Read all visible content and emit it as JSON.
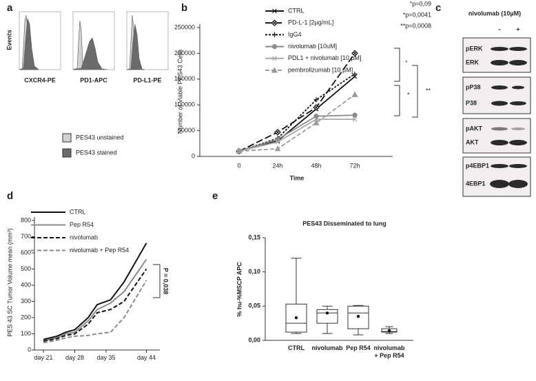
{
  "panel_labels": [
    "a",
    "b",
    "c",
    "d",
    "e"
  ],
  "flow": {
    "y_label": "Events",
    "plots": [
      "CXCR4-PE",
      "PD1-APC",
      "PD-L1-PE"
    ],
    "legend": [
      {
        "name": "PES43 unstained",
        "color": "#d0d0d0"
      },
      {
        "name": "PES43 stained",
        "color": "#6b6b6b"
      }
    ]
  },
  "blots": {
    "treatment": "nivolumab (10µM)",
    "lanes": [
      "-",
      "+"
    ],
    "groups": [
      [
        "pERK",
        "ERK"
      ],
      [
        "pP38",
        "P38"
      ],
      [
        "pAKT",
        "AKT"
      ],
      [
        "p4EBP1",
        "4EBP1"
      ]
    ]
  },
  "chart_data": [
    {
      "type": "line",
      "x_label": "Time",
      "y_label": "Number of Viable PES43 Cells",
      "categories": [
        "0",
        "24h",
        "48h",
        "72h"
      ],
      "ylim": [
        0,
        250000
      ],
      "yticks": [
        0,
        50000,
        100000,
        150000,
        200000,
        250000
      ],
      "series": [
        {
          "name": "CTRL",
          "color": "#111111",
          "dash": "solid",
          "marker": "x",
          "values": [
            10000,
            30000,
            92000,
            155000
          ]
        },
        {
          "name": "PD-L-1 [2µg/mL]",
          "color": "#111111",
          "dash": "long",
          "marker": "diamond",
          "values": [
            10000,
            47000,
            95000,
            200000
          ]
        },
        {
          "name": "IgG4",
          "color": "#111111",
          "dash": "short",
          "marker": "plus",
          "values": [
            10000,
            35000,
            110000,
            160000
          ]
        },
        {
          "name": "nivolumab [10uM]",
          "color": "#8a8a8a",
          "dash": "solid",
          "marker": "circle",
          "values": [
            10000,
            33000,
            78000,
            80000
          ]
        },
        {
          "name": "PDL1 + nivolumab [10 µM]",
          "color": "#a8a8a8",
          "dash": "solid",
          "marker": "x",
          "values": [
            10000,
            28000,
            72000,
            72000
          ]
        },
        {
          "name": "pembrolizumab [10 µM]",
          "color": "#9a9a9a",
          "dash": "dashed",
          "marker": "triangle",
          "values": [
            10000,
            15000,
            65000,
            120000
          ]
        }
      ],
      "annotations": [
        "°p=0,09",
        "*p=0,0041",
        "**p=0,0008"
      ],
      "bracket_labels": [
        "°",
        "*",
        "**"
      ]
    },
    {
      "type": "line",
      "y_label": "PES 43 SC Tumor Volume  mean (mm³)",
      "x": [
        21,
        24,
        26,
        28,
        31,
        33,
        36,
        39,
        44
      ],
      "xlim": [
        19,
        47
      ],
      "xticks": [
        {
          "value": 21,
          "label": "day 21"
        },
        {
          "value": 28,
          "label": "day 28"
        },
        {
          "value": 35,
          "label": "day 35"
        },
        {
          "value": 44,
          "label": "day 44"
        }
      ],
      "ylim": [
        0,
        800
      ],
      "yticks": [
        0,
        100,
        200,
        300,
        400,
        500,
        600,
        700,
        800
      ],
      "series": [
        {
          "name": "CTRL",
          "color": "#111111",
          "dash": "solid",
          "values": [
            65,
            85,
            110,
            125,
            200,
            280,
            310,
            420,
            660
          ]
        },
        {
          "name": "Pep R54",
          "color": "#8a8a8a",
          "dash": "solid",
          "values": [
            55,
            75,
            100,
            110,
            180,
            250,
            290,
            360,
            560
          ]
        },
        {
          "name": "nivolumab",
          "color": "#111111",
          "dash": "dashed",
          "values": [
            55,
            70,
            90,
            100,
            160,
            230,
            250,
            300,
            500
          ]
        },
        {
          "name": "nivolumab + Pep R54",
          "color": "#8a8a8a",
          "dash": "dashed",
          "values": [
            45,
            60,
            75,
            85,
            90,
            100,
            110,
            200,
            430
          ]
        }
      ],
      "annotations": [
        "P = 0,038"
      ]
    },
    {
      "type": "box",
      "title": "PES43 Disseminated to lung",
      "y_label": "% hu-%MSCP APC",
      "categories": [
        "CTRL",
        "nivolumab",
        "Pep R54",
        "nivolumab + Pep R54"
      ],
      "ylim": [
        0,
        0.15
      ],
      "yticks": [
        {
          "value": 0,
          "label": "0,00"
        },
        {
          "value": 0.05,
          "label": "0,05"
        },
        {
          "value": 0.1,
          "label": "0,10"
        },
        {
          "value": 0.15,
          "label": "0,15"
        }
      ],
      "min": [
        0.01,
        0.01,
        0.008,
        0.01
      ],
      "q1": [
        0.012,
        0.025,
        0.017,
        0.012
      ],
      "median": [
        0.025,
        0.04,
        0.04,
        0.013
      ],
      "q3": [
        0.053,
        0.045,
        0.05,
        0.017
      ],
      "max": [
        0.12,
        0.05,
        0.051,
        0.02
      ],
      "mean": [
        0.033,
        0.04,
        0.035,
        0.014
      ]
    }
  ]
}
